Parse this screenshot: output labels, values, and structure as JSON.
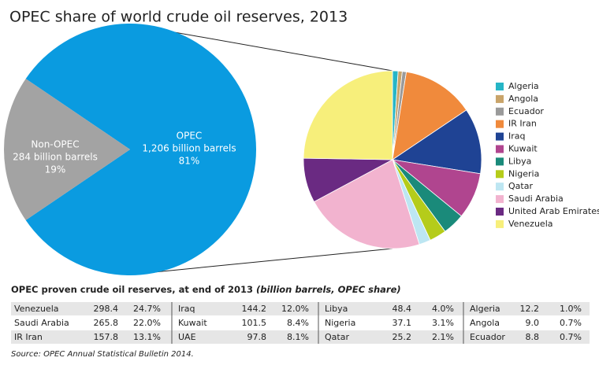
{
  "title": "OPEC share of world crude oil reserves, 2013",
  "chart_data": [
    {
      "type": "pie",
      "categories": [
        "OPEC",
        "Non-OPEC"
      ],
      "amount_labels": [
        "1,206 billion barrels",
        "284 billion barrels"
      ],
      "values": [
        81,
        19
      ],
      "value_labels": [
        "81%",
        "19%"
      ],
      "colors": [
        "#0a9be0",
        "#a3a3a3"
      ]
    },
    {
      "type": "pie",
      "categories": [
        "Algeria",
        "Angola",
        "Ecuador",
        "IR Iran",
        "Iraq",
        "Kuwait",
        "Libya",
        "Nigeria",
        "Qatar",
        "Saudi Arabia",
        "United Arab Emirates",
        "Venezuela"
      ],
      "values": [
        12.2,
        9.0,
        8.8,
        157.8,
        144.2,
        101.5,
        48.4,
        37.1,
        25.2,
        265.8,
        97.8,
        298.4
      ],
      "colors": [
        "#26b5c6",
        "#c9a46a",
        "#9a9a9a",
        "#f08a3c",
        "#1f4394",
        "#b0458f",
        "#1a8a7a",
        "#b5cc1a",
        "#bde6f2",
        "#f2b3cf",
        "#6a2a82",
        "#f7ef7b"
      ],
      "legend": "right"
    }
  ],
  "table": {
    "title": "OPEC proven crude oil reserves, at end of 2013",
    "title_units": "(billion barrels, OPEC share)",
    "groups": [
      [
        [
          "Venezuela",
          "298.4",
          "24.7%"
        ],
        [
          "Saudi Arabia",
          "265.8",
          "22.0%"
        ],
        [
          "IR Iran",
          "157.8",
          "13.1%"
        ]
      ],
      [
        [
          "Iraq",
          "144.2",
          "12.0%"
        ],
        [
          "Kuwait",
          "101.5",
          "8.4%"
        ],
        [
          "UAE",
          "97.8",
          "8.1%"
        ]
      ],
      [
        [
          "Libya",
          "48.4",
          "4.0%"
        ],
        [
          "Nigeria",
          "37.1",
          "3.1%"
        ],
        [
          "Qatar",
          "25.2",
          "2.1%"
        ]
      ],
      [
        [
          "Algeria",
          "12.2",
          "1.0%"
        ],
        [
          "Angola",
          "9.0",
          "0.7%"
        ],
        [
          "Ecuador",
          "8.8",
          "0.7%"
        ]
      ]
    ]
  },
  "source": "Source: OPEC Annual Statistical Bulletin 2014."
}
